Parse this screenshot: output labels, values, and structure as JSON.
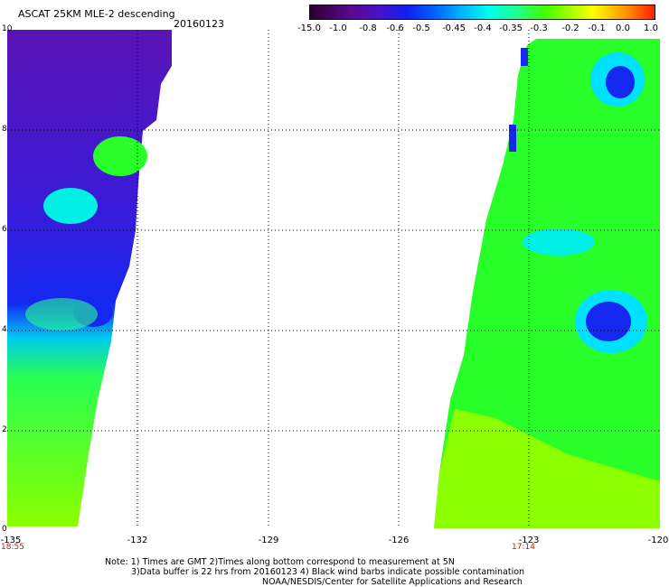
{
  "header": {
    "title": "ASCAT 25KM MLE-2 descending",
    "date": "20160123"
  },
  "colorbar": {
    "labels": [
      "-15.0",
      "-1.0",
      "-0.8",
      "-0.6",
      "-0.5",
      "-0.45",
      "-0.4",
      "-0.35",
      "-0.3",
      "-0.2",
      "-0.1",
      "0.0",
      "1.0"
    ]
  },
  "axes": {
    "x_ticks": [
      "-135",
      "-132",
      "-129",
      "-126",
      "-123",
      "-120"
    ],
    "y_ticks": [
      "0",
      "2",
      "4",
      "6",
      "8",
      "10"
    ],
    "lon_range": [
      -135,
      -120
    ],
    "lat_range": [
      0,
      10
    ],
    "gridlines": "dotted"
  },
  "times": {
    "left": "18:55",
    "right": "17:14"
  },
  "notes": {
    "line1": "Note: 1) Times are GMT 2)Times along bottom correspond to measurement at 5N",
    "line2": "3)Data buffer is 22 hrs from 20160123 4) Black wind barbs indicate possible contamination",
    "line3": "NOAA/NESDIS/Center for Satellite Applications and Research"
  },
  "colors": {
    "purple": "#5a14b4",
    "blue": "#1428f0",
    "cyan": "#00f0e6",
    "green": "#28ff28",
    "lime": "#8cff00",
    "time_text": "#b22222"
  }
}
